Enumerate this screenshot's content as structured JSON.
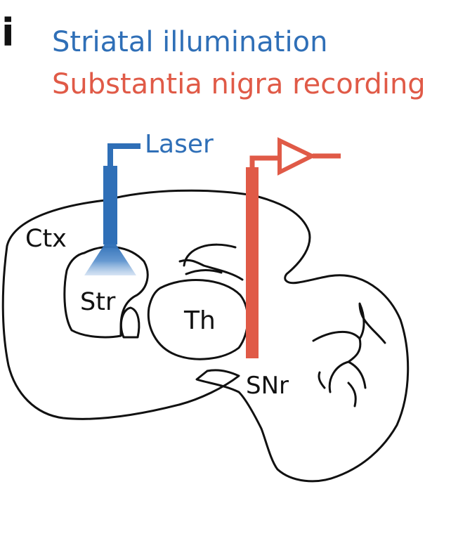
{
  "panel_label": "i",
  "legend": {
    "illumination": "Striatal illumination",
    "recording": "Substantia nigra recording"
  },
  "labels": {
    "laser": "Laser",
    "ctx": "Ctx",
    "str": "Str",
    "th": "Th",
    "snr": "SNr"
  },
  "colors": {
    "blue": "#2f6fb7",
    "red": "#e05a47",
    "outline": "#111111"
  }
}
